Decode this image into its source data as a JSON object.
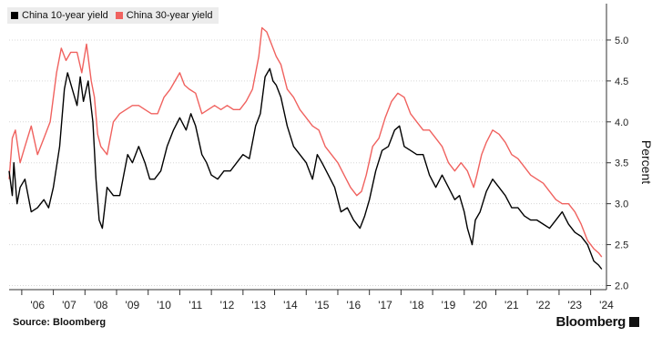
{
  "source_label": "Source: Bloomberg",
  "brand": "Bloomberg",
  "colors": {
    "series_10y": "#000000",
    "series_30y": "#f0625f",
    "grid": "#d8d8d8"
  },
  "chart_data": {
    "type": "line",
    "ylabel": "Percent",
    "ylim": [
      1.95,
      5.4
    ],
    "xlim": [
      2005.6,
      2024.5
    ],
    "y_ticks": [
      2.0,
      2.5,
      3.0,
      3.5,
      4.0,
      4.5,
      5.0
    ],
    "y_tick_labels": [
      "2.0",
      "2.5",
      "3.0",
      "3.5",
      "4.0",
      "4.5",
      "5.0"
    ],
    "x_ticks": [
      2006,
      2007,
      2008,
      2009,
      2010,
      2011,
      2012,
      2013,
      2014,
      2015,
      2016,
      2017,
      2018,
      2019,
      2020,
      2021,
      2022,
      2023,
      2024
    ],
    "x_tick_labels": [
      "'06",
      "'07",
      "'08",
      "'09",
      "'10",
      "'11",
      "'12",
      "'13",
      "'14",
      "'15",
      "'16",
      "'17",
      "'18",
      "'19",
      "'20",
      "'21",
      "'22",
      "'23",
      "'24"
    ],
    "grid": true,
    "legend_position": "top-left",
    "series": [
      {
        "name": "China 10-year yield",
        "color": "#000000",
        "x": [
          2005.6,
          2005.7,
          2005.75,
          2005.85,
          2005.95,
          2006.1,
          2006.3,
          2006.5,
          2006.7,
          2006.85,
          2007.0,
          2007.2,
          2007.35,
          2007.45,
          2007.6,
          2007.75,
          2007.85,
          2007.95,
          2008.1,
          2008.25,
          2008.35,
          2008.45,
          2008.55,
          2008.7,
          2008.9,
          2009.1,
          2009.35,
          2009.5,
          2009.7,
          2009.9,
          2010.05,
          2010.2,
          2010.4,
          2010.6,
          2010.8,
          2011.0,
          2011.2,
          2011.35,
          2011.5,
          2011.7,
          2011.85,
          2012.0,
          2012.2,
          2012.4,
          2012.6,
          2012.8,
          2013.0,
          2013.2,
          2013.4,
          2013.55,
          2013.7,
          2013.85,
          2013.95,
          2014.05,
          2014.2,
          2014.4,
          2014.6,
          2014.8,
          2015.0,
          2015.2,
          2015.35,
          2015.5,
          2015.7,
          2015.9,
          2016.1,
          2016.3,
          2016.5,
          2016.7,
          2016.85,
          2017.0,
          2017.2,
          2017.4,
          2017.6,
          2017.8,
          2017.95,
          2018.1,
          2018.3,
          2018.5,
          2018.7,
          2018.9,
          2019.1,
          2019.3,
          2019.5,
          2019.7,
          2019.85,
          2020.0,
          2020.1,
          2020.25,
          2020.35,
          2020.5,
          2020.7,
          2020.9,
          2021.1,
          2021.3,
          2021.5,
          2021.7,
          2021.9,
          2022.1,
          2022.3,
          2022.5,
          2022.7,
          2022.9,
          2023.1,
          2023.3,
          2023.5,
          2023.7,
          2023.9,
          2024.1,
          2024.25,
          2024.35
        ],
        "values": [
          3.4,
          3.1,
          3.5,
          3.0,
          3.2,
          3.3,
          2.9,
          2.95,
          3.05,
          2.95,
          3.2,
          3.7,
          4.4,
          4.6,
          4.4,
          4.2,
          4.55,
          4.25,
          4.5,
          4.0,
          3.3,
          2.8,
          2.7,
          3.2,
          3.1,
          3.1,
          3.6,
          3.5,
          3.7,
          3.5,
          3.3,
          3.3,
          3.4,
          3.7,
          3.9,
          4.05,
          3.9,
          4.1,
          3.95,
          3.6,
          3.5,
          3.35,
          3.3,
          3.4,
          3.4,
          3.5,
          3.6,
          3.55,
          3.95,
          4.1,
          4.55,
          4.65,
          4.5,
          4.45,
          4.3,
          3.95,
          3.7,
          3.6,
          3.5,
          3.3,
          3.6,
          3.5,
          3.35,
          3.2,
          2.9,
          2.95,
          2.8,
          2.7,
          2.85,
          3.05,
          3.4,
          3.65,
          3.7,
          3.9,
          3.95,
          3.7,
          3.65,
          3.6,
          3.6,
          3.35,
          3.2,
          3.35,
          3.2,
          3.05,
          3.1,
          2.9,
          2.7,
          2.5,
          2.8,
          2.9,
          3.15,
          3.3,
          3.2,
          3.1,
          2.95,
          2.95,
          2.85,
          2.8,
          2.8,
          2.75,
          2.7,
          2.8,
          2.9,
          2.75,
          2.65,
          2.6,
          2.5,
          2.3,
          2.25,
          2.2
        ]
      },
      {
        "name": "China 30-year yield",
        "color": "#f0625f",
        "x": [
          2005.6,
          2005.7,
          2005.8,
          2005.95,
          2006.1,
          2006.3,
          2006.5,
          2006.7,
          2006.9,
          2007.1,
          2007.25,
          2007.4,
          2007.55,
          2007.75,
          2007.9,
          2008.05,
          2008.2,
          2008.3,
          2008.4,
          2008.5,
          2008.7,
          2008.9,
          2009.1,
          2009.3,
          2009.5,
          2009.7,
          2009.9,
          2010.1,
          2010.3,
          2010.5,
          2010.7,
          2010.85,
          2011.0,
          2011.15,
          2011.3,
          2011.5,
          2011.7,
          2011.9,
          2012.1,
          2012.3,
          2012.5,
          2012.7,
          2012.9,
          2013.1,
          2013.3,
          2013.5,
          2013.6,
          2013.75,
          2013.9,
          2014.05,
          2014.2,
          2014.4,
          2014.6,
          2014.8,
          2015.0,
          2015.2,
          2015.4,
          2015.6,
          2015.8,
          2016.0,
          2016.2,
          2016.4,
          2016.6,
          2016.75,
          2016.9,
          2017.1,
          2017.3,
          2017.5,
          2017.7,
          2017.9,
          2018.1,
          2018.3,
          2018.5,
          2018.7,
          2018.9,
          2019.1,
          2019.3,
          2019.5,
          2019.7,
          2019.9,
          2020.1,
          2020.3,
          2020.4,
          2020.55,
          2020.7,
          2020.9,
          2021.1,
          2021.3,
          2021.5,
          2021.7,
          2021.9,
          2022.1,
          2022.3,
          2022.5,
          2022.7,
          2022.9,
          2023.1,
          2023.3,
          2023.5,
          2023.7,
          2023.9,
          2024.1,
          2024.25,
          2024.35
        ],
        "values": [
          3.3,
          3.8,
          3.9,
          3.5,
          3.7,
          3.95,
          3.6,
          3.8,
          4.0,
          4.6,
          4.9,
          4.75,
          4.85,
          4.85,
          4.6,
          4.95,
          4.5,
          4.3,
          3.85,
          3.7,
          3.6,
          4.0,
          4.1,
          4.15,
          4.2,
          4.2,
          4.15,
          4.1,
          4.1,
          4.3,
          4.4,
          4.5,
          4.6,
          4.45,
          4.4,
          4.35,
          4.1,
          4.15,
          4.2,
          4.15,
          4.2,
          4.15,
          4.15,
          4.25,
          4.4,
          4.8,
          5.15,
          5.1,
          4.95,
          4.8,
          4.7,
          4.4,
          4.3,
          4.15,
          4.05,
          3.95,
          3.9,
          3.7,
          3.6,
          3.5,
          3.35,
          3.2,
          3.1,
          3.15,
          3.35,
          3.7,
          3.8,
          4.05,
          4.25,
          4.35,
          4.3,
          4.1,
          4.0,
          3.9,
          3.9,
          3.8,
          3.7,
          3.5,
          3.4,
          3.5,
          3.4,
          3.2,
          3.35,
          3.6,
          3.75,
          3.9,
          3.85,
          3.75,
          3.6,
          3.55,
          3.45,
          3.35,
          3.3,
          3.25,
          3.15,
          3.05,
          3.0,
          3.0,
          2.9,
          2.75,
          2.55,
          2.45,
          2.4,
          2.35
        ]
      }
    ]
  }
}
